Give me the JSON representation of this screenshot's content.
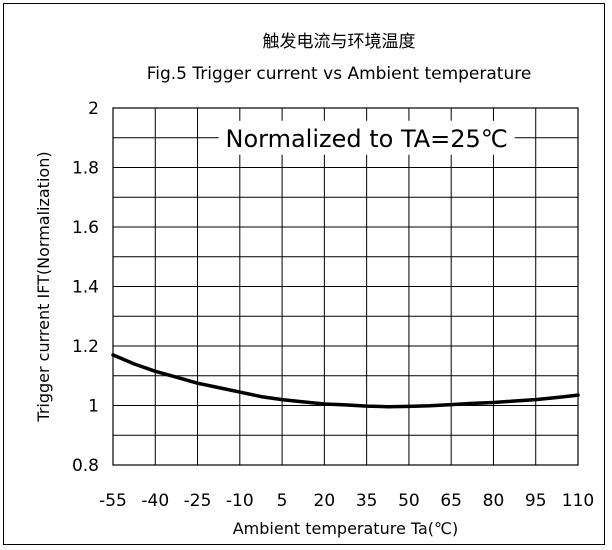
{
  "chart_data": {
    "type": "line",
    "title": "触发电流与环境温度",
    "subtitle": "Fig.5 Trigger current vs Ambient temperature",
    "xlabel": "Ambient temperature Ta(℃)",
    "ylabel": "Trigger current IFT(Normalization)",
    "annotation": "Normalized to TA=25℃",
    "xlim": [
      -55,
      110
    ],
    "ylim": [
      0.8,
      2.0
    ],
    "grid": true,
    "x_ticks": [
      -55,
      -40,
      -25,
      -10,
      5,
      20,
      35,
      50,
      65,
      80,
      95,
      110
    ],
    "y_ticks": [
      0.8,
      1.0,
      1.2,
      1.4,
      1.6,
      1.8,
      2.0
    ],
    "x_tick_labels": [
      "-55",
      "-40",
      "-25",
      "-10",
      "5",
      "20",
      "35",
      "50",
      "65",
      "80",
      "95",
      "110"
    ],
    "y_tick_labels": [
      "0.8",
      "1",
      "1.2",
      "1.4",
      "1.6",
      "1.8",
      "2"
    ],
    "series": [
      {
        "color": "#000000",
        "x": [
          -55,
          -47.5,
          -40,
          -32.5,
          -25,
          -17.5,
          -10,
          -2.5,
          5,
          12.5,
          20,
          27.5,
          35,
          42.5,
          50,
          57.5,
          65,
          72.5,
          80,
          87.5,
          95,
          102.5,
          110
        ],
        "y": [
          1.17,
          1.14,
          1.115,
          1.095,
          1.075,
          1.06,
          1.045,
          1.03,
          1.02,
          1.012,
          1.005,
          1.002,
          0.998,
          0.996,
          0.997,
          0.999,
          1.003,
          1.007,
          1.01,
          1.015,
          1.02,
          1.027,
          1.035
        ]
      }
    ]
  }
}
